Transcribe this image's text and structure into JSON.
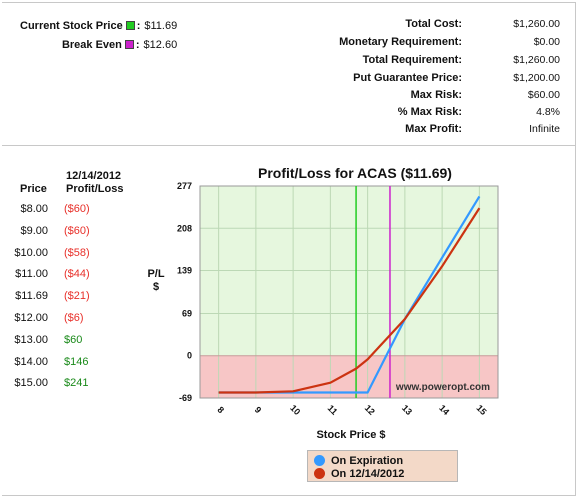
{
  "summary": {
    "current_price": {
      "label": "Current Stock Price",
      "value": "$11.69",
      "color": "#22cc22"
    },
    "break_even": {
      "label": "Break Even",
      "value": "$12.60",
      "color": "#cc22cc"
    }
  },
  "metrics": [
    {
      "label": "Total Cost:",
      "value": "$1,260.00"
    },
    {
      "label": "Monetary Requirement:",
      "value": "$0.00"
    },
    {
      "label": "Total Requirement:",
      "value": "$1,260.00"
    },
    {
      "label": "Put Guarantee Price:",
      "value": "$1,200.00"
    },
    {
      "label": "Max Risk:",
      "value": "$60.00"
    },
    {
      "label": "% Max Risk:",
      "value": "4.8%"
    },
    {
      "label": "Max Profit:",
      "value": "Infinite"
    }
  ],
  "pl_table": {
    "date_header_line1": "12/14/2012",
    "date_header_line2": "Profit/Loss",
    "price_header": "Price",
    "rows": [
      {
        "price": "$8.00",
        "pl": "($60)",
        "sign": "neg"
      },
      {
        "price": "$9.00",
        "pl": "($60)",
        "sign": "neg"
      },
      {
        "price": "$10.00",
        "pl": "($58)",
        "sign": "neg"
      },
      {
        "price": "$11.00",
        "pl": "($44)",
        "sign": "neg"
      },
      {
        "price": "$11.69",
        "pl": "($21)",
        "sign": "neg"
      },
      {
        "price": "$12.00",
        "pl": "($6)",
        "sign": "neg"
      },
      {
        "price": "$13.00",
        "pl": "$60",
        "sign": "pos"
      },
      {
        "price": "$14.00",
        "pl": "$146",
        "sign": "pos"
      },
      {
        "price": "$15.00",
        "pl": "$241",
        "sign": "pos"
      }
    ]
  },
  "chart_data": {
    "type": "line",
    "title": "Profit/Loss for ACAS ($11.69)",
    "xlabel": "Stock Price $",
    "ylabel_line1": "P/L",
    "ylabel_line2": "$",
    "watermark": "www.poweropt.com",
    "x_ticks": [
      "8",
      "9",
      "10",
      "11",
      "12",
      "13",
      "14",
      "15"
    ],
    "y_ticks": [
      277,
      208,
      139,
      69,
      0,
      -69
    ],
    "xlim": [
      7.5,
      15.5
    ],
    "ylim": [
      -69,
      277
    ],
    "current_price": 11.69,
    "break_even": 12.6,
    "colors": {
      "profit_zone": "#e6f7de",
      "loss_zone": "#f7c6c6",
      "grid": "#bcd8b5",
      "current_line": "#22cc22",
      "break_even_line": "#cc22cc"
    },
    "series": [
      {
        "name": "On Expiration",
        "color": "#3399ff",
        "x": [
          8,
          9,
          10,
          11,
          11.69,
          12,
          13,
          14,
          15
        ],
        "y": [
          -60,
          -60,
          -60,
          -60,
          -60,
          -60,
          60,
          160,
          260
        ]
      },
      {
        "name": "On 12/14/2012",
        "color": "#cc3311",
        "x": [
          8,
          9,
          10,
          11,
          11.69,
          12,
          13,
          14,
          15
        ],
        "y": [
          -60,
          -60,
          -58,
          -44,
          -21,
          -6,
          60,
          146,
          241
        ]
      }
    ]
  }
}
